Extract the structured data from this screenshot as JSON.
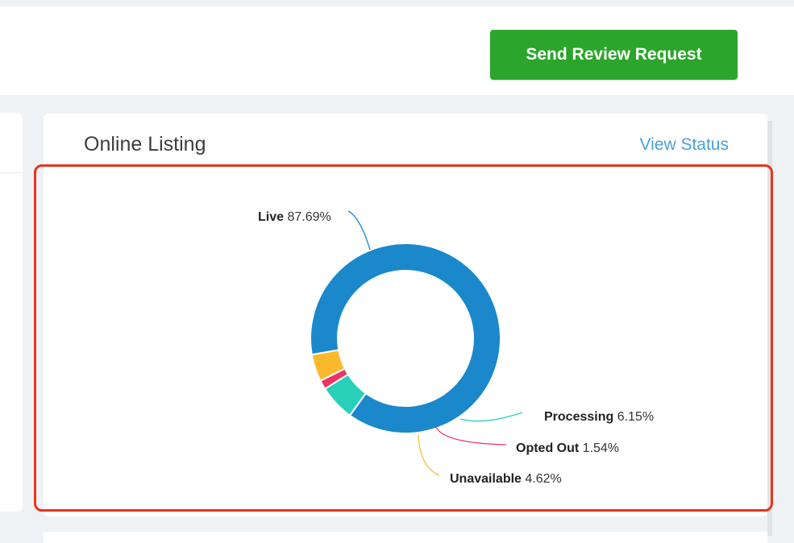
{
  "header": {
    "send_review_label": "Send Review Request"
  },
  "card": {
    "title": "Online Listing",
    "view_status_label": "View Status"
  },
  "colors": {
    "live": "#1b88cc",
    "processing": "#28d0b8",
    "opted_out": "#ef3366",
    "unavailable": "#fbb92e",
    "button_green": "#2ba52b",
    "link_blue": "#4a9fd8",
    "highlight_red": "#e8341c"
  },
  "chart_data": {
    "type": "pie",
    "variant": "donut",
    "title": "",
    "slices": [
      {
        "name": "Live",
        "value": 87.69,
        "display": "87.69%",
        "color": "#1b88cc"
      },
      {
        "name": "Processing",
        "value": 6.15,
        "display": "6.15%",
        "color": "#28d0b8"
      },
      {
        "name": "Opted Out",
        "value": 1.54,
        "display": "1.54%",
        "color": "#ef3366"
      },
      {
        "name": "Unavailable",
        "value": 4.62,
        "display": "4.62%",
        "color": "#fbb92e"
      }
    ]
  }
}
